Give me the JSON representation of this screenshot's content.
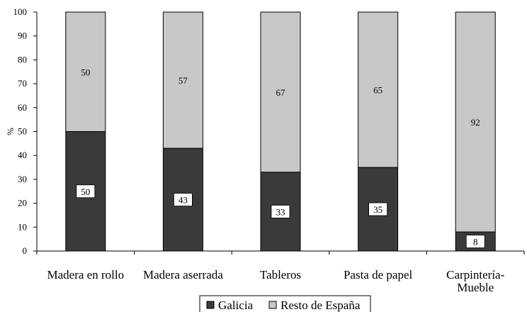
{
  "chart_data": {
    "type": "bar",
    "stacked": true,
    "categories": [
      "Madera en rollo",
      "Madera aserrada",
      "Tableros",
      "Pasta de papel",
      "Carpintería-Mueble"
    ],
    "category_lines": [
      [
        "Madera en rollo"
      ],
      [
        "Madera aserrada"
      ],
      [
        "Tableros"
      ],
      [
        "Pasta de papel"
      ],
      [
        "Carpintería-",
        "Mueble"
      ]
    ],
    "series": [
      {
        "name": "Galicia",
        "values": [
          50,
          43,
          33,
          35,
          8
        ],
        "color": "#3a3a3a"
      },
      {
        "name": "Resto de España",
        "values": [
          50,
          57,
          67,
          65,
          92
        ],
        "color": "#c8c8c8"
      }
    ],
    "ylabel": "%",
    "ylim": [
      0,
      100
    ],
    "yticks": [
      0,
      10,
      20,
      30,
      40,
      50,
      60,
      70,
      80,
      90,
      100
    ],
    "grid": false,
    "legend_position": "bottom"
  }
}
